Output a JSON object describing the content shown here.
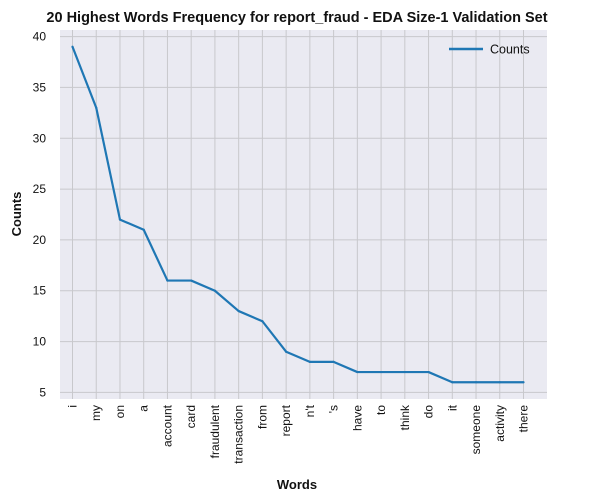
{
  "chart_data": {
    "type": "line",
    "title": "20 Highest Words Frequency for report_fraud - EDA Size-1 Validation Set",
    "xlabel": "Words",
    "ylabel": "Counts",
    "categories": [
      "i",
      "my",
      "on",
      "a",
      "account",
      "card",
      "fraudulent",
      "transaction",
      "from",
      "report",
      "n't",
      "'s",
      "have",
      "to",
      "think",
      "do",
      "it",
      "someone",
      "activity",
      "there"
    ],
    "series": [
      {
        "name": "Counts",
        "values": [
          39,
          33,
          22,
          21,
          16,
          16,
          15,
          13,
          12,
          9,
          8,
          8,
          7,
          7,
          7,
          7,
          6,
          6,
          6,
          6
        ]
      }
    ],
    "yticks": [
      5,
      10,
      15,
      20,
      25,
      30,
      35,
      40
    ],
    "ylim": [
      4.35,
      40.65
    ],
    "grid": true,
    "legend": "top-right",
    "colors": {
      "line": "#1f77b4",
      "plot_bg": "#eaeaf2",
      "grid": "#c8c8cc"
    }
  }
}
